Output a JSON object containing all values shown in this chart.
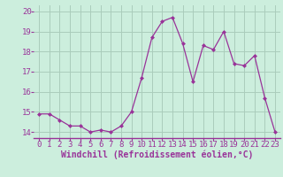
{
  "x": [
    0,
    1,
    2,
    3,
    4,
    5,
    6,
    7,
    8,
    9,
    10,
    11,
    12,
    13,
    14,
    15,
    16,
    17,
    18,
    19,
    20,
    21,
    22,
    23
  ],
  "y": [
    14.9,
    14.9,
    14.6,
    14.3,
    14.3,
    14.0,
    14.1,
    14.0,
    14.3,
    15.0,
    16.7,
    18.7,
    19.5,
    19.7,
    18.4,
    16.5,
    18.3,
    18.1,
    19.0,
    17.4,
    17.3,
    17.8,
    15.7,
    14.0
  ],
  "line_color": "#993399",
  "marker": "D",
  "marker_size": 2.0,
  "line_width": 0.9,
  "bg_color": "#cceedd",
  "grid_color": "#aaccbb",
  "xlabel": "Windchill (Refroidissement éolien,°C)",
  "xlabel_color": "#993399",
  "tick_color": "#993399",
  "ylim": [
    13.7,
    20.3
  ],
  "yticks": [
    14,
    15,
    16,
    17,
    18,
    19,
    20
  ],
  "xticks": [
    0,
    1,
    2,
    3,
    4,
    5,
    6,
    7,
    8,
    9,
    10,
    11,
    12,
    13,
    14,
    15,
    16,
    17,
    18,
    19,
    20,
    21,
    22,
    23
  ],
  "font_size": 6.5,
  "xlabel_font_size": 7.0,
  "spine_color": "#993399"
}
